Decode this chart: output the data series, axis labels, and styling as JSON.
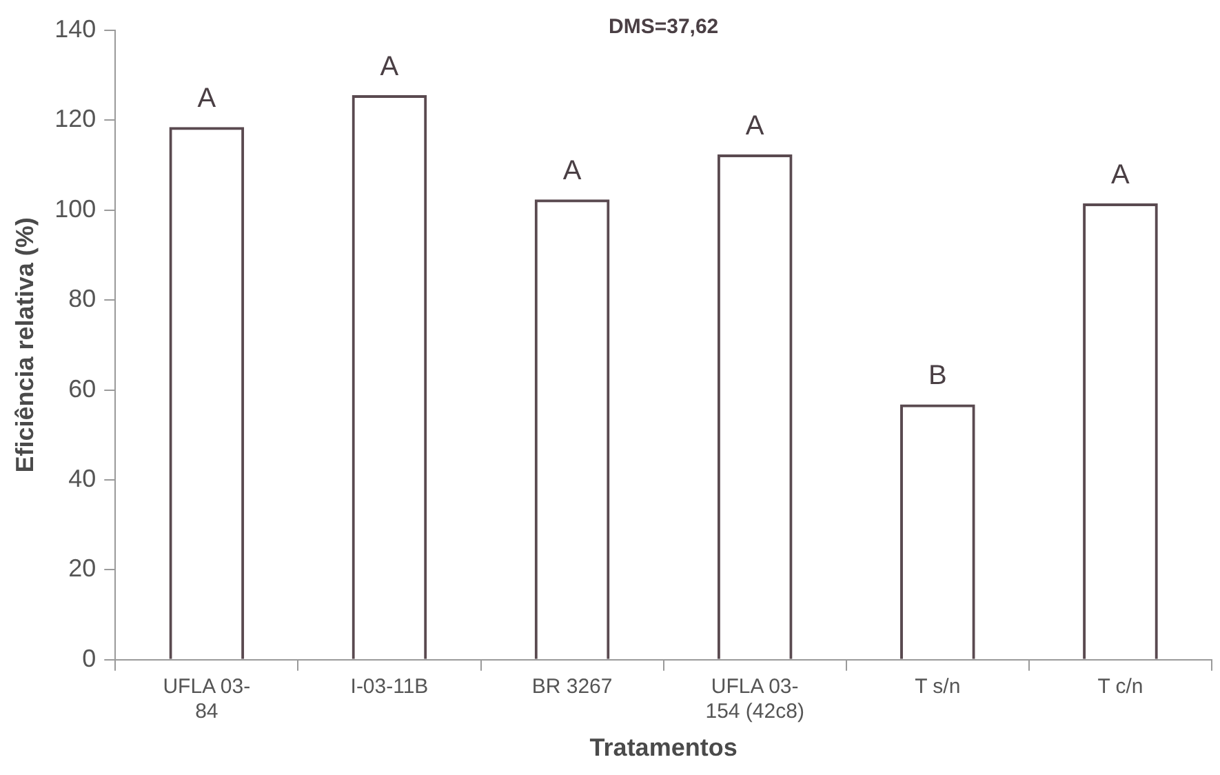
{
  "chart_data": {
    "type": "bar",
    "xlabel": "Tratamentos",
    "ylabel": "Eficiência relativa (%)",
    "categories": [
      "UFLA 03-84",
      "I-03-11B",
      "BR 3267",
      "UFLA 03-154 (42c8)",
      "T s/n",
      "T c/n"
    ],
    "values": [
      118.5,
      125.6,
      102.4,
      112.4,
      56.8,
      101.5
    ],
    "color": "#5a4a50",
    "ylim": [
      0,
      140
    ],
    "yticks": [
      0,
      20,
      40,
      60,
      80,
      100,
      120,
      140
    ],
    "grid": false,
    "legend": false,
    "annotations": [
      "DMS=37,62",
      {
        "text": "A",
        "x": "UFLA 03-84",
        "y": 118.5
      },
      {
        "text": "A",
        "x": "I-03-11B",
        "y": 125.6
      },
      {
        "text": "A",
        "x": "BR 3267",
        "y": 102.4
      },
      {
        "text": "A",
        "x": "UFLA 03-154 (42c8)",
        "y": 112.4
      },
      {
        "text": "B",
        "x": "T s/n",
        "y": 56.8
      },
      {
        "text": "A",
        "x": "T c/n",
        "y": 101.5
      }
    ]
  }
}
